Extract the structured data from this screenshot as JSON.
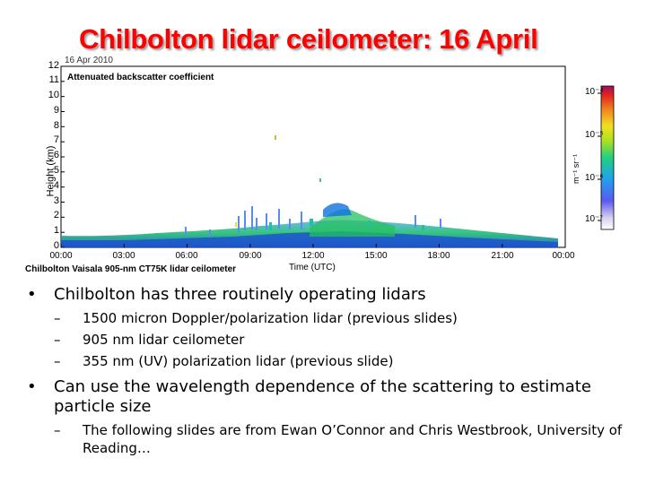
{
  "slide": {
    "title": "Chilbolton lidar ceilometer: 16 April"
  },
  "figure": {
    "date_label": "16 Apr 2010",
    "panel_label": "Attenuated backscatter coefficient",
    "ylabel": "Height (km)",
    "xlabel": "Time (UTC)",
    "caption": "Chilbolton Vaisala 905-nm CT75K lidar ceilometer",
    "y_ticks": [
      "0",
      "1",
      "2",
      "3",
      "4",
      "5",
      "6",
      "7",
      "8",
      "9",
      "10",
      "11",
      "12"
    ],
    "x_ticks": [
      "00:00",
      "03:00",
      "06:00",
      "09:00",
      "12:00",
      "15:00",
      "18:00",
      "21:00",
      "00:00"
    ],
    "colorbar": {
      "unit": "m⁻¹ sr⁻¹",
      "ticks": [
        "10⁻⁴",
        "10⁻⁵",
        "10⁻⁶",
        "10⁻⁷"
      ]
    }
  },
  "bullets": [
    {
      "text": "Chilbolton has three routinely operating lidars",
      "subs": [
        "1500 micron Doppler/polarization lidar (previous slides)",
        "905 nm lidar ceilometer",
        "355 nm (UV) polarization lidar (previous slide)"
      ]
    },
    {
      "text": "Can use the wavelength dependence of the scattering to estimate particle size",
      "subs": [
        "The following slides are from Ewan O’Connor and Chris Westbrook, University of Reading…"
      ]
    }
  ],
  "symbols": {
    "bullet": "•",
    "dash": "–"
  }
}
